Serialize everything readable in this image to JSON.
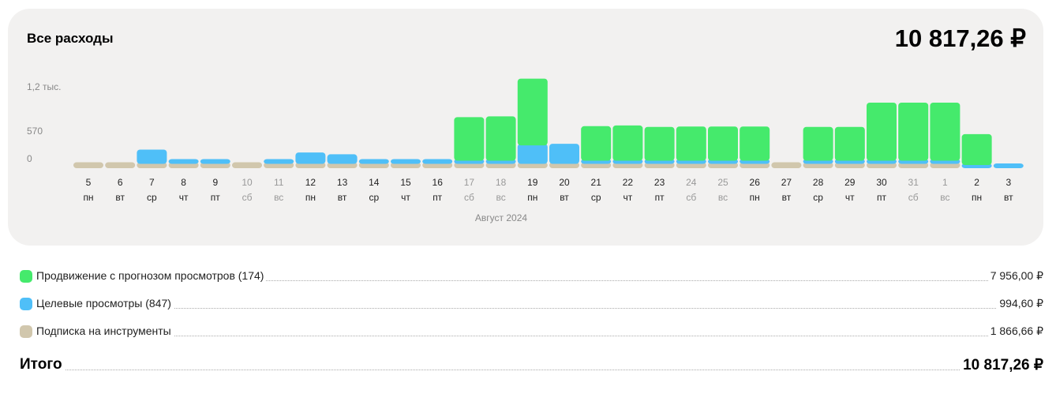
{
  "header": {
    "title": "Все расходы",
    "total": "10 817,26 ₽"
  },
  "chart_data": {
    "type": "bar",
    "stacked": true,
    "period_label": "Август 2024",
    "ylim": [
      0,
      1200
    ],
    "y_ticks": [
      {
        "value": 0,
        "label": "0"
      },
      {
        "value": 570,
        "label": "570"
      },
      {
        "value": 1200,
        "label": "1,2 тыс."
      }
    ],
    "categories": [
      {
        "day": "5",
        "wd": "пн",
        "weekend": false
      },
      {
        "day": "6",
        "wd": "вт",
        "weekend": false
      },
      {
        "day": "7",
        "wd": "ср",
        "weekend": false
      },
      {
        "day": "8",
        "wd": "чт",
        "weekend": false
      },
      {
        "day": "9",
        "wd": "пт",
        "weekend": false
      },
      {
        "day": "10",
        "wd": "сб",
        "weekend": true
      },
      {
        "day": "11",
        "wd": "вс",
        "weekend": true
      },
      {
        "day": "12",
        "wd": "пн",
        "weekend": false
      },
      {
        "day": "13",
        "wd": "вт",
        "weekend": false
      },
      {
        "day": "14",
        "wd": "ср",
        "weekend": false
      },
      {
        "day": "15",
        "wd": "чт",
        "weekend": false
      },
      {
        "day": "16",
        "wd": "пт",
        "weekend": false
      },
      {
        "day": "17",
        "wd": "сб",
        "weekend": true
      },
      {
        "day": "18",
        "wd": "вс",
        "weekend": true
      },
      {
        "day": "19",
        "wd": "пн",
        "weekend": false
      },
      {
        "day": "20",
        "wd": "вт",
        "weekend": false
      },
      {
        "day": "21",
        "wd": "ср",
        "weekend": false
      },
      {
        "day": "22",
        "wd": "чт",
        "weekend": false
      },
      {
        "day": "23",
        "wd": "пт",
        "weekend": false
      },
      {
        "day": "24",
        "wd": "сб",
        "weekend": true
      },
      {
        "day": "25",
        "wd": "вс",
        "weekend": true
      },
      {
        "day": "26",
        "wd": "пн",
        "weekend": false
      },
      {
        "day": "27",
        "wd": "вт",
        "weekend": false
      },
      {
        "day": "28",
        "wd": "ср",
        "weekend": false
      },
      {
        "day": "29",
        "wd": "чт",
        "weekend": false
      },
      {
        "day": "30",
        "wd": "пт",
        "weekend": false
      },
      {
        "day": "31",
        "wd": "сб",
        "weekend": true
      },
      {
        "day": "1",
        "wd": "вс",
        "weekend": true
      },
      {
        "day": "2",
        "wd": "пн",
        "weekend": false
      },
      {
        "day": "3",
        "wd": "вт",
        "weekend": false
      }
    ],
    "series": [
      {
        "key": "subscription",
        "color": "#d1c7ad",
        "values": [
          60,
          60,
          60,
          60,
          60,
          60,
          60,
          60,
          60,
          60,
          60,
          60,
          60,
          60,
          60,
          60,
          60,
          60,
          60,
          60,
          60,
          60,
          60,
          60,
          60,
          60,
          60,
          60,
          0,
          0
        ]
      },
      {
        "key": "views",
        "color": "#4fbff8",
        "values": [
          0,
          0,
          175,
          30,
          10,
          0,
          20,
          135,
          110,
          15,
          10,
          15,
          25,
          25,
          255,
          255,
          25,
          25,
          20,
          20,
          20,
          20,
          0,
          20,
          20,
          25,
          25,
          25,
          20,
          20
        ]
      },
      {
        "key": "promo",
        "color": "#45ea6c",
        "values": [
          0,
          0,
          0,
          0,
          0,
          0,
          0,
          0,
          0,
          0,
          0,
          0,
          580,
          590,
          900,
          0,
          455,
          465,
          445,
          450,
          450,
          450,
          0,
          445,
          445,
          780,
          780,
          780,
          405,
          0
        ]
      }
    ]
  },
  "legend": [
    {
      "color": "#45ea6c",
      "label": "Продвижение с прогнозом просмотров (174)",
      "amount": "7 956,00 ₽"
    },
    {
      "color": "#4fbff8",
      "label": "Целевые просмотры (847)",
      "amount": "994,60 ₽"
    },
    {
      "color": "#d1c7ad",
      "label": "Подписка на инструменты",
      "amount": "1 866,66 ₽"
    }
  ],
  "total_row": {
    "label": "Итого",
    "amount": "10 817,26 ₽"
  }
}
